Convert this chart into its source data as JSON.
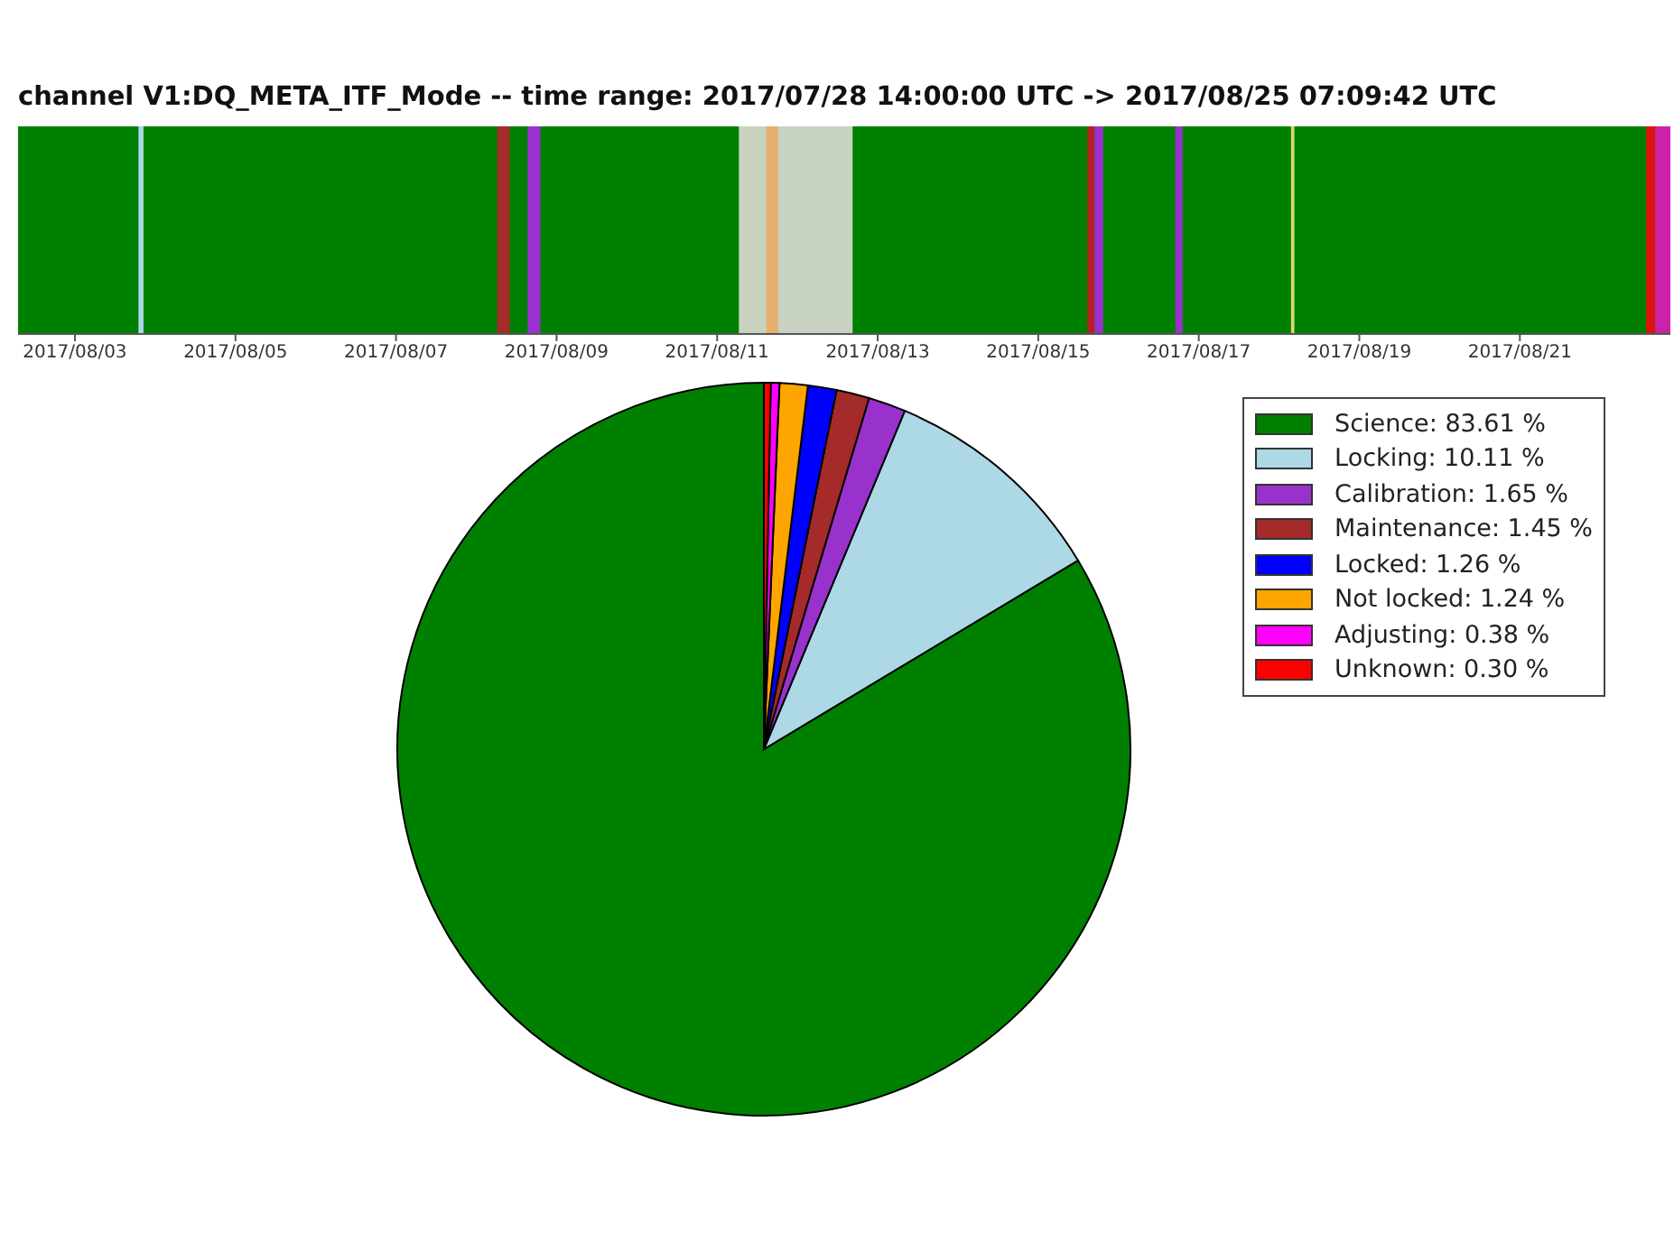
{
  "chart_data": [
    {
      "type": "bar",
      "orientation": "horizontal",
      "categories": [
        null
      ],
      "values": [
        null
      ],
      "title": "channel V1:DQ_META_ITF_Mode -- time range: 2017/07/28 14:00:00 UTC -> 2017/08/25 07:09:42 UTC",
      "xlim": [
        "2017-08-02T07:00",
        "2017-08-22T21:00"
      ],
      "xticks": [
        {
          "value": "2017-08-03",
          "label": "2017/08/03"
        },
        {
          "value": "2017-08-05",
          "label": "2017/08/05"
        },
        {
          "value": "2017-08-07",
          "label": "2017/08/07"
        },
        {
          "value": "2017-08-09",
          "label": "2017/08/09"
        },
        {
          "value": "2017-08-11",
          "label": "2017/08/11"
        },
        {
          "value": "2017-08-13",
          "label": "2017/08/13"
        },
        {
          "value": "2017-08-15",
          "label": "2017/08/15"
        },
        {
          "value": "2017-08-17",
          "label": "2017/08/17"
        },
        {
          "value": "2017-08-19",
          "label": "2017/08/19"
        },
        {
          "value": "2017-08-21",
          "label": "2017/08/21"
        }
      ],
      "bands": [
        {
          "axis": "x",
          "from": "2017-08-02T07:00",
          "to": "2017-08-22T21:00",
          "color": "#008000"
        },
        {
          "axis": "x",
          "from": "2017-08-03T19:00",
          "to": "2017-08-03T20:30",
          "color": "#add8e6"
        },
        {
          "axis": "x",
          "from": "2017-08-08T06:15",
          "to": "2017-08-08T10:00",
          "color": "#a52a2a"
        },
        {
          "axis": "x",
          "from": "2017-08-08T15:20",
          "to": "2017-08-08T19:10",
          "color": "#9932cc"
        },
        {
          "axis": "x",
          "from": "2017-08-11T06:30",
          "to": "2017-08-12T16:30",
          "color": "#c8d2c0"
        },
        {
          "axis": "x",
          "from": "2017-08-11T14:40",
          "to": "2017-08-11T18:15",
          "color": "#e8b070"
        },
        {
          "axis": "x",
          "from": "2017-08-15T14:40",
          "to": "2017-08-15T16:50",
          "color": "#b22222"
        },
        {
          "axis": "x",
          "from": "2017-08-15T16:50",
          "to": "2017-08-15T19:25",
          "color": "#9932cc"
        },
        {
          "axis": "x",
          "from": "2017-08-16T17:00",
          "to": "2017-08-16T19:10",
          "color": "#9932cc"
        },
        {
          "axis": "x",
          "from": "2017-08-18T03:35",
          "to": "2017-08-18T04:35",
          "color": "#d8d870"
        },
        {
          "axis": "x",
          "from": "2017-08-22T13:45",
          "to": "2017-08-22T16:30",
          "color": "#dd1111"
        },
        {
          "axis": "x",
          "from": "2017-08-22T16:30",
          "to": "2017-08-22T21:00",
          "color": "#cc22aa"
        }
      ]
    },
    {
      "type": "pie",
      "legend": "top right",
      "categories": [
        "Science",
        "Locking",
        "Calibration",
        "Maintenance",
        "Locked",
        "Not locked",
        "Adjusting",
        "Unknown"
      ],
      "values": [
        83.61,
        10.11,
        1.65,
        1.45,
        1.26,
        1.24,
        0.38,
        0.3
      ],
      "value_labels": [
        "83.61 %",
        "10.11 %",
        "1.65 %",
        "1.45 %",
        "1.26 %",
        "1.24 %",
        "0.38 %",
        "0.30 %"
      ],
      "colors": [
        "#008000",
        "#add8e6",
        "#9932cc",
        "#a52a2a",
        "#0000ff",
        "#ffa500",
        "#ff00ff",
        "#ff0000"
      ]
    }
  ]
}
